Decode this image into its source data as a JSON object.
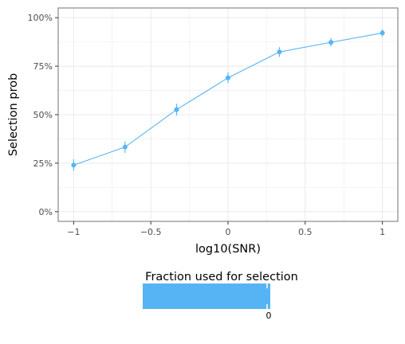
{
  "chart_data": {
    "type": "line",
    "xlabel": "log10(SNR)",
    "ylabel": "Selection prob",
    "xlim": [
      -1.1,
      1.1
    ],
    "ylim": [
      -0.05,
      1.05
    ],
    "x_ticks": [
      -1,
      -0.5,
      0,
      0.5,
      1
    ],
    "x_tick_labels": [
      "−1",
      "−0.5",
      "0",
      "0.5",
      "1"
    ],
    "y_ticks": [
      0,
      0.25,
      0.5,
      0.75,
      1
    ],
    "y_tick_labels": [
      "0%",
      "25%",
      "50%",
      "75%",
      "100%"
    ],
    "grid": true,
    "series": [
      {
        "x": [
          -1,
          -0.667,
          -0.333,
          0,
          0.333,
          0.667,
          1
        ],
        "y": [
          0.24,
          0.333,
          0.526,
          0.69,
          0.823,
          0.873,
          0.921
        ],
        "err": [
          0.03,
          0.03,
          0.03,
          0.028,
          0.025,
          0.022,
          0.018
        ]
      }
    ],
    "legend": {
      "title": "Fraction used for selection",
      "placement": "bottom",
      "labels": [
        "0"
      ]
    }
  },
  "colors": {
    "series": "#56b4f5",
    "grid": "#ebebeb",
    "panel_border": "#7f7f7f",
    "tick_text": "#4d4d4d"
  }
}
